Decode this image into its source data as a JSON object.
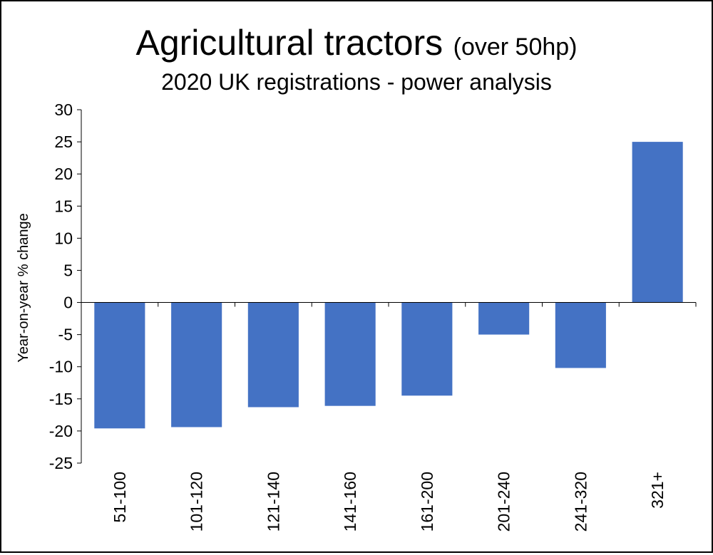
{
  "chart_data": {
    "type": "bar",
    "title_main": "Agricultural tractors",
    "title_suffix": "(over 50hp)",
    "subtitle": "2020 UK registrations - power analysis",
    "xlabel": "",
    "ylabel": "Year-on-year  % change",
    "categories": [
      "51-100",
      "101-120",
      "121-140",
      "141-160",
      "161-200",
      "201-240",
      "241-320",
      "321+"
    ],
    "values": [
      -19.6,
      -19.4,
      -16.3,
      -16.1,
      -14.5,
      -5.0,
      -10.2,
      25.0
    ],
    "ylim": [
      -25,
      30
    ],
    "yticks": [
      30,
      25,
      20,
      15,
      10,
      5,
      0,
      -5,
      -10,
      -15,
      -20,
      -25
    ],
    "grid": false,
    "legend": "none",
    "bar_color": "#4472C4"
  }
}
